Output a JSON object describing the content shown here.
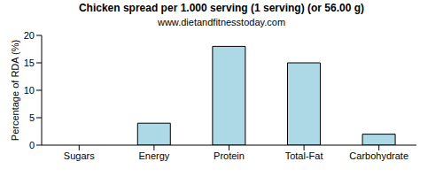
{
  "chart_data": {
    "type": "bar",
    "title": "Chicken spread per 1.000 serving (1 serving) (or 56.00 g)",
    "subtitle": "www.dietandfitnesstoday.com",
    "y_label": "Percentage of RDA (%)",
    "categories": [
      "Sugars",
      "Energy",
      "Protein",
      "Total-Fat",
      "Carbohydrate"
    ],
    "values": [
      0,
      4,
      18,
      15,
      2
    ],
    "color": "#add8e6",
    "ylim": [
      0,
      20
    ],
    "yticks": [
      0,
      5,
      10,
      15,
      20
    ],
    "grid": false
  }
}
